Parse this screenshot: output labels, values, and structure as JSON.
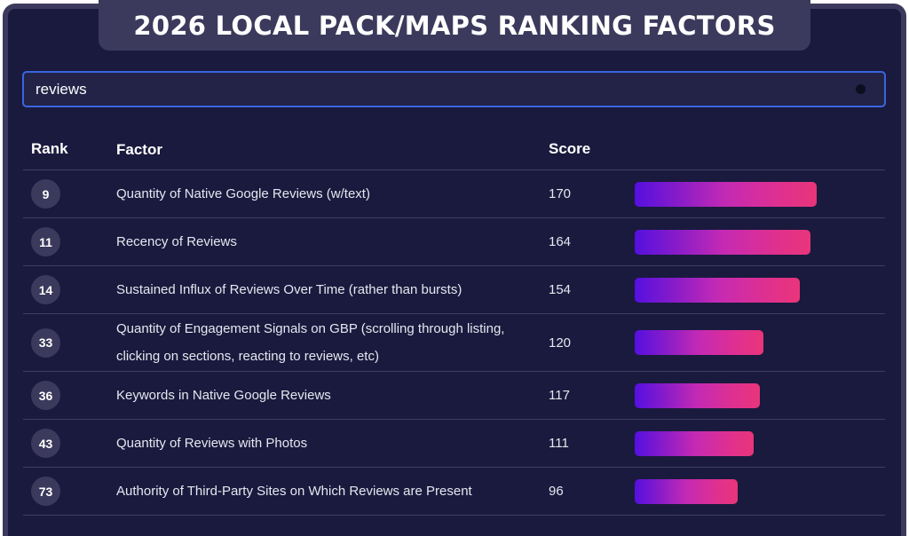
{
  "title": "2026 LOCAL PACK/MAPS RANKING FACTORS",
  "search": {
    "value": "reviews"
  },
  "columns": {
    "rank": "Rank",
    "factor": "Factor",
    "score": "Score"
  },
  "rows": [
    {
      "rank": "9",
      "factor": "Quantity of Native Google Reviews (w/text)",
      "score": "170",
      "value": 170
    },
    {
      "rank": "11",
      "factor": "Recency of Reviews",
      "score": "164",
      "value": 164
    },
    {
      "rank": "14",
      "factor": "Sustained Influx of Reviews Over Time (rather than bursts)",
      "score": "154",
      "value": 154
    },
    {
      "rank": "33",
      "factor": "Quantity of Engagement Signals on GBP (scrolling through listing, clicking on sections, reacting to reviews, etc)",
      "score": "120",
      "value": 120
    },
    {
      "rank": "36",
      "factor": "Keywords in Native Google Reviews",
      "score": "117",
      "value": 117
    },
    {
      "rank": "43",
      "factor": "Quantity of Reviews with Photos",
      "score": "111",
      "value": 111
    },
    {
      "rank": "73",
      "factor": "Authority of Third-Party Sites on Which Reviews are Present",
      "score": "96",
      "value": 96
    }
  ]
}
